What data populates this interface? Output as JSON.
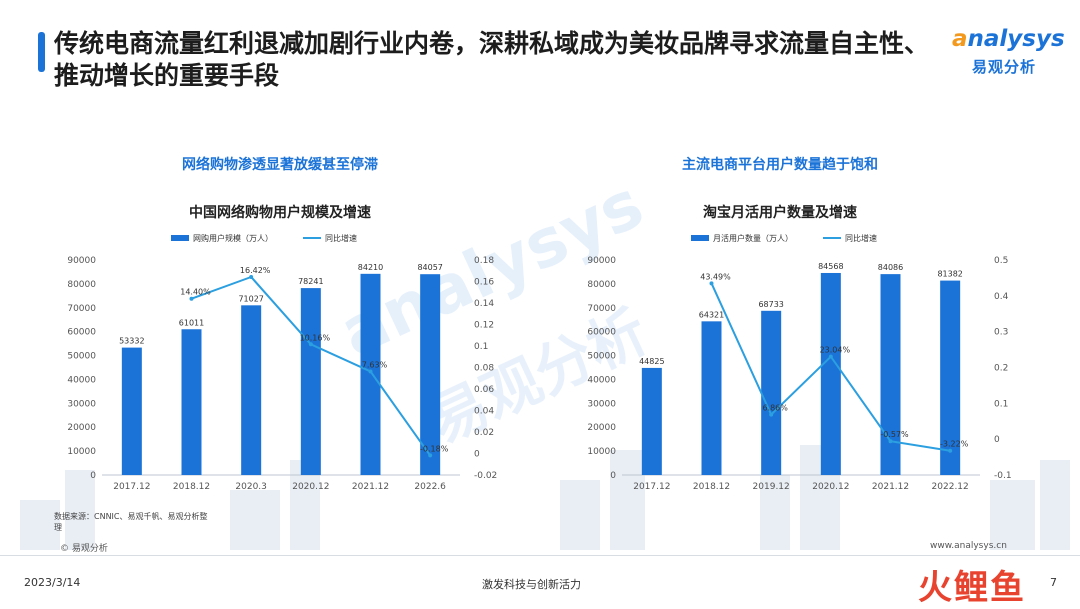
{
  "header": {
    "title": "传统电商流量红利退减加剧行业内卷，深耕私域成为美妆品牌寻求流量自主性、推动增长的重要手段",
    "logo_en_prefix": "a",
    "logo_en": "nalysys",
    "logo_cn": "易观分析"
  },
  "watermark": {
    "en": "analysys",
    "cn": "易观分析"
  },
  "left": {
    "subtitle": "网络购物渗透显著放缓甚至停滞",
    "chart_title": "中国网络购物用户规模及增速"
  },
  "right": {
    "subtitle": "主流电商平台用户数量趋于饱和",
    "chart_title": "淘宝月活用户数量及增速"
  },
  "chart_data": [
    {
      "type": "bar",
      "title": "中国网络购物用户规模及增速",
      "categories": [
        "2017.12",
        "2018.12",
        "2020.3",
        "2020.12",
        "2021.12",
        "2022.6"
      ],
      "series": [
        {
          "name": "网购用户规模（万人）",
          "type": "bar",
          "axis": "left",
          "color": "#1b73d8",
          "values": [
            53332,
            61011,
            71027,
            78241,
            84210,
            84057
          ],
          "labels": [
            "53332",
            "61011",
            "71027",
            "78241",
            "84210",
            "84057"
          ]
        },
        {
          "name": "同比增速",
          "type": "line",
          "axis": "right",
          "color": "#2b9fe0",
          "values": [
            null,
            0.144,
            0.1642,
            0.1016,
            0.0763,
            -0.0018
          ],
          "labels": [
            "",
            "14.40%",
            "16.42%",
            "10.16%",
            "7.63%",
            "-0.18%"
          ]
        }
      ],
      "y_left": {
        "min": 0,
        "max": 90000,
        "step": 10000,
        "ticks": [
          "0",
          "10000",
          "20000",
          "30000",
          "40000",
          "50000",
          "60000",
          "70000",
          "80000",
          "90000"
        ]
      },
      "y_right": {
        "min": -0.02,
        "max": 0.18,
        "step": 0.02,
        "ticks": [
          "-0.02",
          "0",
          "0.02",
          "0.04",
          "0.06",
          "0.08",
          "0.1",
          "0.12",
          "0.14",
          "0.16",
          "0.18"
        ]
      },
      "legend": "top"
    },
    {
      "type": "bar",
      "title": "淘宝月活用户数量及增速",
      "categories": [
        "2017.12",
        "2018.12",
        "2019.12",
        "2020.12",
        "2021.12",
        "2022.12"
      ],
      "series": [
        {
          "name": "月活用户数量（万人）",
          "type": "bar",
          "axis": "left",
          "color": "#1b73d8",
          "values": [
            44825,
            64321,
            68733,
            84568,
            84086,
            81382
          ],
          "labels": [
            "44825",
            "64321",
            "68733",
            "84568",
            "84086",
            "81382"
          ]
        },
        {
          "name": "同比增速",
          "type": "line",
          "axis": "right",
          "color": "#2b9fe0",
          "values": [
            null,
            0.4349,
            0.0686,
            0.2304,
            -0.0057,
            -0.0322
          ],
          "labels": [
            "",
            "43.49%",
            "6.86%",
            "23.04%",
            "-0.57%",
            "-3.22%"
          ]
        }
      ],
      "y_left": {
        "min": 0,
        "max": 90000,
        "step": 10000,
        "ticks": [
          "0",
          "10000",
          "20000",
          "30000",
          "40000",
          "50000",
          "60000",
          "70000",
          "80000",
          "90000"
        ]
      },
      "y_right": {
        "min": -0.1,
        "max": 0.5,
        "step": 0.1,
        "ticks": [
          "-0.1",
          "0",
          "0.1",
          "0.2",
          "0.3",
          "0.4",
          "0.5"
        ]
      },
      "legend": "top"
    }
  ],
  "footer": {
    "source": "数据来源：CNNIC、易观千帆、易观分析整理",
    "copyright": "© 易观分析",
    "website": "www.analysys.cn",
    "date": "2023/3/14",
    "slogan": "激发科技与创新活力",
    "page": "7",
    "corner_logo": "火鲤鱼"
  },
  "colors": {
    "accent": "#1b73d8",
    "line": "#2b9fe0",
    "logo_orange": "#f39a1e"
  }
}
